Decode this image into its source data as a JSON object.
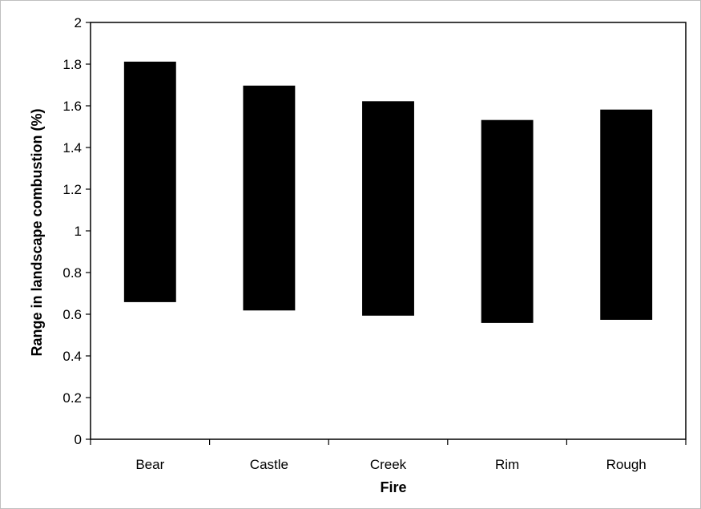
{
  "chart_data": {
    "type": "bar",
    "subtype": "floating-range",
    "categories": [
      "Bear",
      "Castle",
      "Creek",
      "Rim",
      "Rough"
    ],
    "low": [
      0.66,
      0.62,
      0.595,
      0.56,
      0.575
    ],
    "high": [
      1.81,
      1.695,
      1.62,
      1.53,
      1.58
    ],
    "xlabel": "Fire",
    "ylabel": "Range in landscape combustion (%)",
    "ylim": [
      0,
      2
    ],
    "yticks": [
      "0",
      "0.2",
      "0.4",
      "0.6",
      "0.8",
      "1",
      "1.2",
      "1.4",
      "1.6",
      "1.8",
      "2"
    ],
    "grid": false,
    "legend": "none",
    "bar_color": "#000000"
  }
}
